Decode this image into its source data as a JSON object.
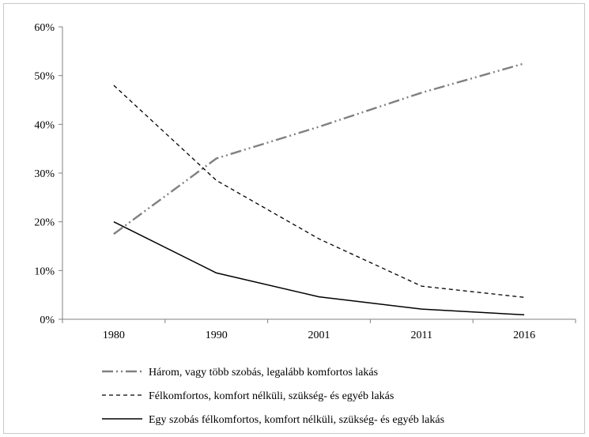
{
  "chart_data": {
    "type": "line",
    "categories": [
      "1980",
      "1990",
      "2001",
      "2011",
      "2016"
    ],
    "y_ticks": [
      "0%",
      "10%",
      "20%",
      "30%",
      "40%",
      "50%",
      "60%"
    ],
    "ylim": [
      0,
      60
    ],
    "grid": false,
    "legend_position": "bottom",
    "series": [
      {
        "name": "Három, vagy több szobás, legalább komfortos lakás",
        "values": [
          17.5,
          33,
          39.5,
          46.5,
          52.5
        ],
        "color": "#808080",
        "style": "dash-dot-dot"
      },
      {
        "name": "Félkomfortos, komfort nélküli, szükség- és egyéb lakás",
        "values": [
          48,
          28.5,
          16.5,
          6.8,
          4.5
        ],
        "color": "#000000",
        "style": "dashed"
      },
      {
        "name": "Egy szobás félkomfortos, komfort nélküli, szükség- és egyéb lakás",
        "values": [
          20,
          9.5,
          4.6,
          2.1,
          0.9
        ],
        "color": "#000000",
        "style": "solid"
      }
    ]
  }
}
